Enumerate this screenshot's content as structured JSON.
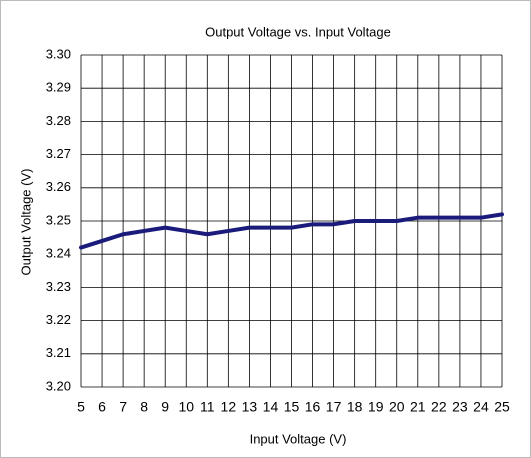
{
  "chart_data": {
    "type": "line",
    "title": "Output Voltage vs. Input Voltage",
    "xlabel": "Input Voltage (V)",
    "ylabel": "Output Voltage (V)",
    "x": [
      5,
      6,
      7,
      8,
      9,
      10,
      11,
      12,
      13,
      14,
      15,
      16,
      17,
      18,
      19,
      20,
      21,
      22,
      23,
      24,
      25
    ],
    "series": [
      {
        "name": "Output Voltage",
        "color": "#1b1b7c",
        "values": [
          3.242,
          3.244,
          3.246,
          3.247,
          3.248,
          3.247,
          3.246,
          3.247,
          3.248,
          3.248,
          3.248,
          3.249,
          3.249,
          3.25,
          3.25,
          3.25,
          3.251,
          3.251,
          3.251,
          3.251,
          3.252
        ]
      }
    ],
    "xlim": [
      5,
      25
    ],
    "xticks": [
      5,
      6,
      7,
      8,
      9,
      10,
      11,
      12,
      13,
      14,
      15,
      16,
      17,
      18,
      19,
      20,
      21,
      22,
      23,
      24,
      25
    ],
    "ylim": [
      3.2,
      3.3
    ],
    "yticks": [
      {
        "value": 3.2,
        "label": "3.20"
      },
      {
        "value": 3.21,
        "label": "3.21"
      },
      {
        "value": 3.22,
        "label": "3.22"
      },
      {
        "value": 3.23,
        "label": "3.23"
      },
      {
        "value": 3.24,
        "label": "3.24"
      },
      {
        "value": 3.25,
        "label": "3.25"
      },
      {
        "value": 3.26,
        "label": "3.26"
      },
      {
        "value": 3.27,
        "label": "3.27"
      },
      {
        "value": 3.28,
        "label": "3.28"
      },
      {
        "value": 3.29,
        "label": "3.29"
      },
      {
        "value": 3.3,
        "label": "3.30"
      }
    ],
    "grid": true
  }
}
